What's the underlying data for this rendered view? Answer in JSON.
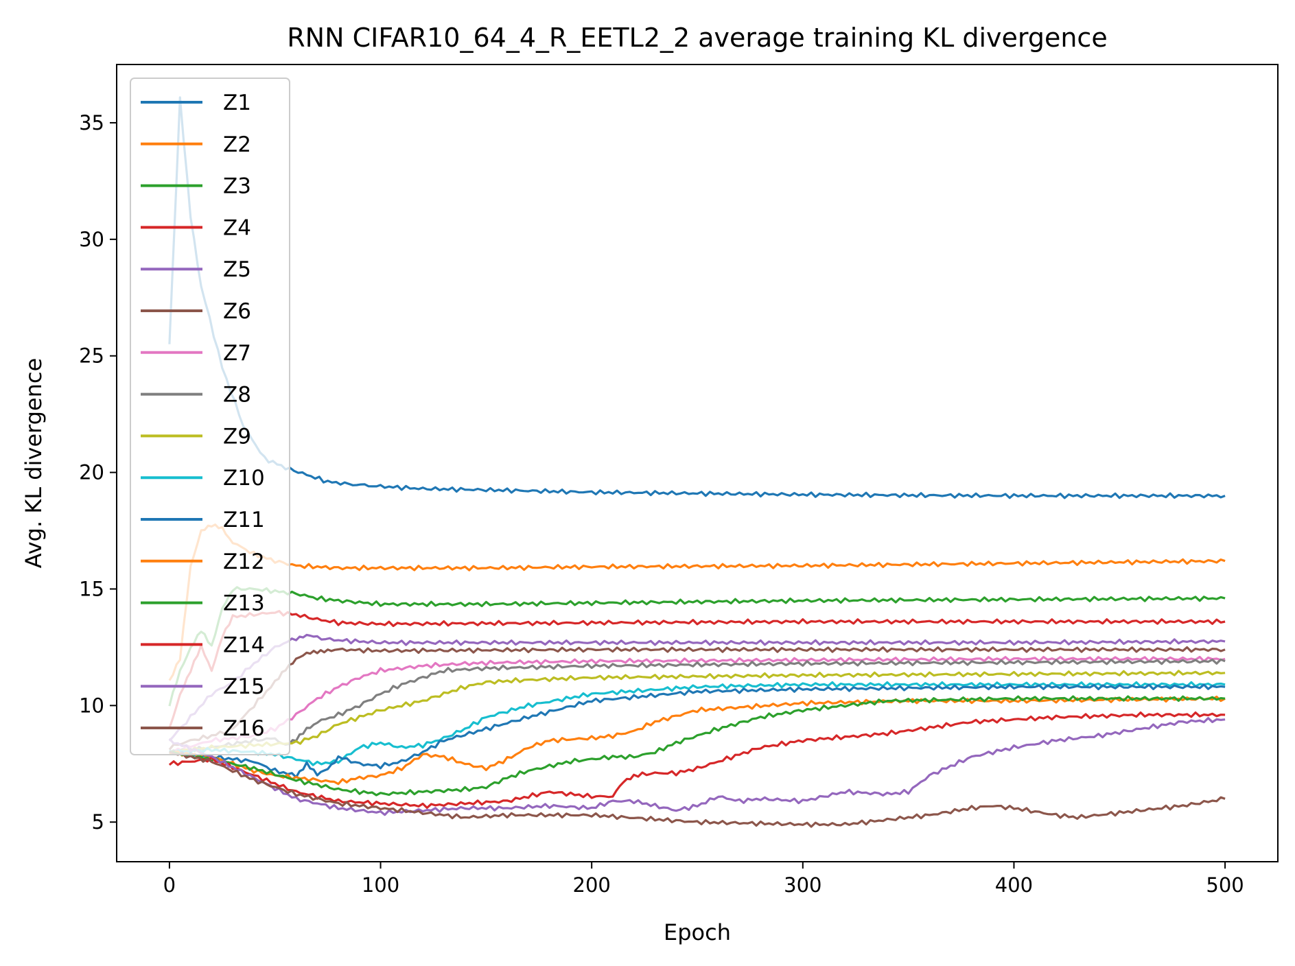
{
  "chart_data": {
    "type": "line",
    "title": "RNN CIFAR10_64_4_R_EETL2_2 average training KL divergence",
    "xlabel": "Epoch",
    "ylabel": "Avg. KL divergence",
    "xlim": [
      -25,
      525
    ],
    "ylim": [
      3.3,
      37.5
    ],
    "xticks": [
      0,
      100,
      200,
      300,
      400,
      500
    ],
    "yticks": [
      5,
      10,
      15,
      20,
      25,
      30,
      35
    ],
    "grid": false,
    "legend_position": "upper-left",
    "series": [
      {
        "name": "Z1",
        "color": "#1f77b4",
        "x": [
          0,
          5,
          10,
          15,
          25,
          35,
          45,
          55,
          65,
          75,
          85,
          100,
          120,
          150,
          200,
          250,
          300,
          350,
          400,
          450,
          500
        ],
        "y": [
          25.5,
          36,
          31,
          28,
          24.5,
          22,
          20.6,
          20.2,
          19.9,
          19.6,
          19.5,
          19.4,
          19.3,
          19.25,
          19.15,
          19.1,
          19.05,
          19.02,
          19.0,
          19.0,
          19.0
        ]
      },
      {
        "name": "Z2",
        "color": "#ff7f0e",
        "x": [
          0,
          5,
          10,
          15,
          20,
          25,
          30,
          40,
          50,
          60,
          70,
          80,
          100,
          150,
          200,
          300,
          400,
          500
        ],
        "y": [
          11,
          12,
          16,
          17.5,
          17.7,
          17.6,
          17.0,
          16.5,
          16.2,
          16.0,
          15.95,
          15.9,
          15.9,
          15.9,
          15.95,
          16.0,
          16.1,
          16.2
        ]
      },
      {
        "name": "Z3",
        "color": "#2ca02c",
        "x": [
          0,
          5,
          10,
          15,
          20,
          25,
          30,
          40,
          50,
          60,
          70,
          80,
          100,
          150,
          200,
          300,
          400,
          500
        ],
        "y": [
          10,
          11.5,
          12.5,
          13.2,
          12.5,
          14.2,
          15.0,
          15.0,
          14.9,
          14.8,
          14.6,
          14.5,
          14.35,
          14.35,
          14.4,
          14.5,
          14.55,
          14.6
        ]
      },
      {
        "name": "Z4",
        "color": "#d62728",
        "x": [
          0,
          5,
          10,
          15,
          20,
          25,
          30,
          40,
          50,
          60,
          70,
          80,
          100,
          200,
          300,
          400,
          500
        ],
        "y": [
          9,
          10.5,
          11.5,
          12.5,
          11.5,
          13.0,
          13.8,
          13.9,
          14.0,
          13.9,
          13.7,
          13.55,
          13.5,
          13.55,
          13.6,
          13.6,
          13.6
        ]
      },
      {
        "name": "Z5",
        "color": "#9467bd",
        "x": [
          0,
          10,
          20,
          30,
          40,
          50,
          60,
          65,
          70,
          80,
          100,
          200,
          300,
          400,
          500
        ],
        "y": [
          8.5,
          9.5,
          10.5,
          11.0,
          11.8,
          12.5,
          12.9,
          13.0,
          12.9,
          12.8,
          12.7,
          12.7,
          12.7,
          12.7,
          12.75
        ]
      },
      {
        "name": "Z6",
        "color": "#8c564b",
        "x": [
          0,
          10,
          20,
          30,
          40,
          50,
          55,
          60,
          65,
          70,
          75,
          80,
          100,
          200,
          300,
          400,
          500
        ],
        "y": [
          8.2,
          8.5,
          8.7,
          9.0,
          10.0,
          11.0,
          11.6,
          12.0,
          12.2,
          12.3,
          12.4,
          12.4,
          12.35,
          12.4,
          12.4,
          12.4,
          12.4
        ]
      },
      {
        "name": "Z7",
        "color": "#e377c2",
        "x": [
          0,
          20,
          40,
          50,
          60,
          70,
          80,
          90,
          100,
          110,
          120,
          140,
          160,
          200,
          300,
          400,
          500
        ],
        "y": [
          8,
          8.5,
          8.7,
          9.0,
          9.6,
          10.3,
          10.8,
          11.2,
          11.5,
          11.6,
          11.7,
          11.8,
          11.85,
          11.9,
          11.95,
          12.0,
          12.0
        ]
      },
      {
        "name": "Z8",
        "color": "#7f7f7f",
        "x": [
          0,
          20,
          40,
          50,
          55,
          60,
          65,
          70,
          80,
          90,
          100,
          110,
          120,
          130,
          150,
          200,
          300,
          400,
          500
        ],
        "y": [
          8,
          8.2,
          8.5,
          8.6,
          8.3,
          8.5,
          9.0,
          9.3,
          9.6,
          10.0,
          10.5,
          10.9,
          11.2,
          11.5,
          11.6,
          11.7,
          11.8,
          11.85,
          11.9
        ]
      },
      {
        "name": "Z9",
        "color": "#bcbd22",
        "x": [
          0,
          20,
          40,
          60,
          70,
          80,
          90,
          100,
          110,
          120,
          130,
          140,
          150,
          170,
          200,
          300,
          400,
          500
        ],
        "y": [
          8,
          8.2,
          8.3,
          8.4,
          8.7,
          9.2,
          9.5,
          9.8,
          10.0,
          10.2,
          10.5,
          10.8,
          11.0,
          11.1,
          11.2,
          11.3,
          11.35,
          11.4
        ]
      },
      {
        "name": "Z10",
        "color": "#17becf",
        "x": [
          0,
          20,
          40,
          50,
          60,
          70,
          80,
          90,
          100,
          110,
          120,
          130,
          140,
          150,
          170,
          200,
          250,
          300,
          400,
          500
        ],
        "y": [
          8,
          8.1,
          8.0,
          7.9,
          7.7,
          7.5,
          7.6,
          8.2,
          8.4,
          8.2,
          8.3,
          8.6,
          9.0,
          9.5,
          10.0,
          10.5,
          10.8,
          10.9,
          10.9,
          10.9
        ]
      },
      {
        "name": "Z11",
        "color": "#1f77b4",
        "x": [
          0,
          20,
          40,
          50,
          60,
          65,
          70,
          75,
          80,
          90,
          100,
          110,
          120,
          130,
          150,
          170,
          200,
          250,
          300,
          400,
          500
        ],
        "y": [
          8,
          7.8,
          7.6,
          7.2,
          7.0,
          7.5,
          7.0,
          7.3,
          7.8,
          7.5,
          7.4,
          7.6,
          8.0,
          8.5,
          9.0,
          9.5,
          10.2,
          10.6,
          10.7,
          10.8,
          10.8
        ]
      },
      {
        "name": "Z12",
        "color": "#ff7f0e",
        "x": [
          0,
          20,
          40,
          50,
          60,
          70,
          80,
          90,
          100,
          110,
          120,
          130,
          140,
          150,
          160,
          170,
          180,
          200,
          210,
          220,
          230,
          250,
          300,
          350,
          400,
          500
        ],
        "y": [
          8,
          7.8,
          7.2,
          7.0,
          6.9,
          6.8,
          6.7,
          6.9,
          7.0,
          7.3,
          7.9,
          7.8,
          7.5,
          7.3,
          7.7,
          8.2,
          8.5,
          8.6,
          8.7,
          8.9,
          9.3,
          9.8,
          10.1,
          10.2,
          10.2,
          10.3
        ]
      },
      {
        "name": "Z13",
        "color": "#2ca02c",
        "x": [
          0,
          20,
          40,
          60,
          80,
          100,
          120,
          140,
          150,
          160,
          170,
          180,
          190,
          200,
          210,
          220,
          230,
          240,
          260,
          280,
          300,
          340,
          400,
          500
        ],
        "y": [
          8,
          7.7,
          7.3,
          6.8,
          6.4,
          6.2,
          6.3,
          6.4,
          6.5,
          6.9,
          7.2,
          7.4,
          7.6,
          7.7,
          7.8,
          7.8,
          8.0,
          8.4,
          9.0,
          9.5,
          9.8,
          10.2,
          10.3,
          10.3
        ]
      },
      {
        "name": "Z14",
        "color": "#d62728",
        "x": [
          0,
          20,
          40,
          60,
          80,
          100,
          120,
          140,
          160,
          180,
          200,
          210,
          215,
          220,
          230,
          240,
          250,
          260,
          270,
          280,
          300,
          340,
          380,
          420,
          460,
          500
        ],
        "y": [
          7.5,
          7.7,
          7.0,
          6.3,
          5.9,
          5.8,
          5.7,
          5.8,
          5.9,
          6.3,
          6.1,
          6.1,
          6.7,
          7.0,
          7.1,
          7.1,
          7.3,
          7.6,
          7.9,
          8.2,
          8.5,
          8.8,
          9.3,
          9.5,
          9.6,
          9.6
        ]
      },
      {
        "name": "Z15",
        "color": "#9467bd",
        "x": [
          0,
          20,
          40,
          60,
          80,
          100,
          120,
          140,
          160,
          180,
          200,
          210,
          220,
          230,
          240,
          250,
          260,
          270,
          280,
          300,
          320,
          340,
          350,
          360,
          380,
          400,
          420,
          440,
          460,
          480,
          500
        ],
        "y": [
          8.5,
          7.8,
          6.9,
          6.0,
          5.6,
          5.4,
          5.5,
          5.6,
          5.6,
          5.7,
          5.6,
          5.9,
          5.9,
          5.7,
          5.5,
          5.7,
          6.1,
          5.9,
          6.0,
          5.9,
          6.3,
          6.2,
          6.3,
          7.0,
          7.8,
          8.2,
          8.5,
          8.7,
          9.0,
          9.3,
          9.4
        ]
      },
      {
        "name": "Z16",
        "color": "#8c564b",
        "x": [
          0,
          20,
          40,
          60,
          80,
          100,
          120,
          140,
          160,
          200,
          250,
          300,
          320,
          340,
          360,
          380,
          390,
          400,
          420,
          430,
          460,
          480,
          500
        ],
        "y": [
          8,
          7.6,
          6.8,
          6.2,
          5.8,
          5.6,
          5.4,
          5.2,
          5.3,
          5.3,
          5.0,
          4.9,
          4.9,
          5.1,
          5.3,
          5.6,
          5.7,
          5.6,
          5.3,
          5.2,
          5.5,
          5.7,
          6.0
        ]
      }
    ]
  }
}
